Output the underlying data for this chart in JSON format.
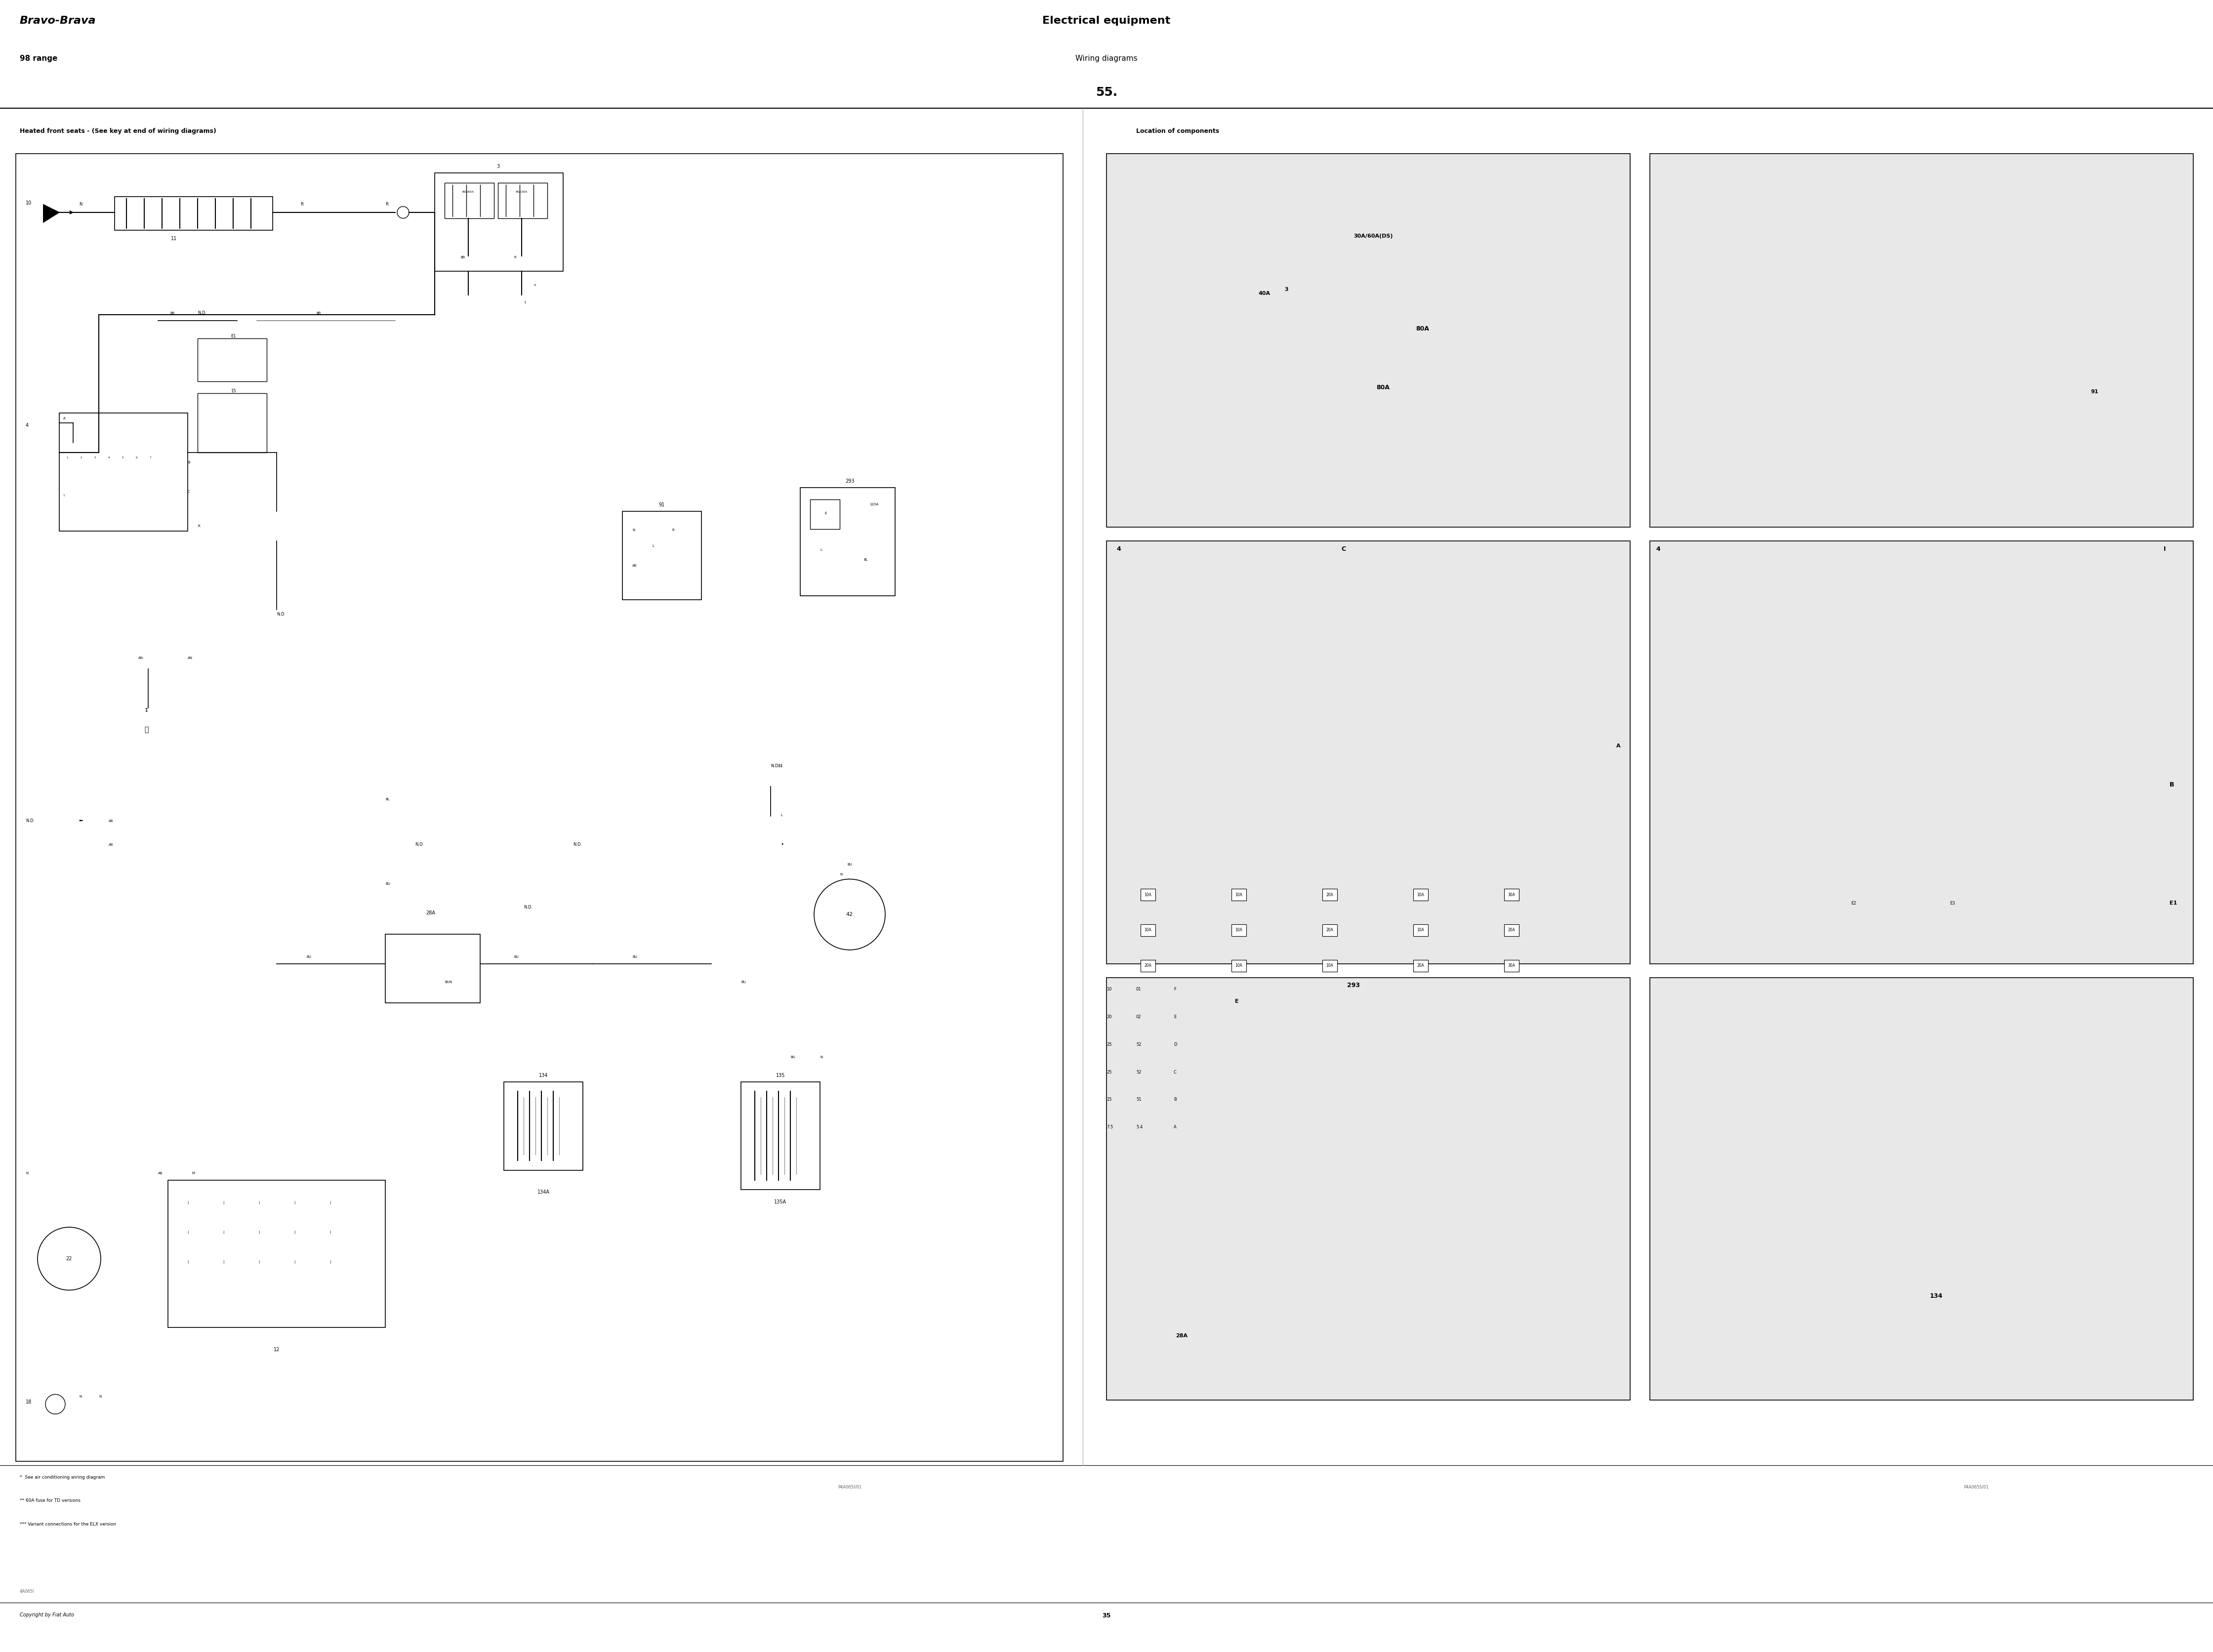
{
  "page_width": 44.8,
  "page_height": 33.44,
  "bg_color": "#ffffff",
  "title_left_italic": "Bravo-Brava",
  "title_left_sub": "98 range",
  "title_center": "Electrical equipment",
  "title_center_sub": "Wiring diagrams",
  "page_number": "55.",
  "diagram_title": "Heated front seats - (See key at end of wiring diagrams)",
  "location_title": "Location of components",
  "footer_left": "Copyright by Fiat Auto",
  "footer_center": "35",
  "footer_notes": [
    "*  See air conditioning wiring diagram",
    "** 60A fuse for TD versions",
    "*** Variant connections for the ELX version"
  ],
  "ref_left": "4A065I",
  "ref_right_diag": "P4A065I/01",
  "ref_right_loc": "P4A065S/01"
}
